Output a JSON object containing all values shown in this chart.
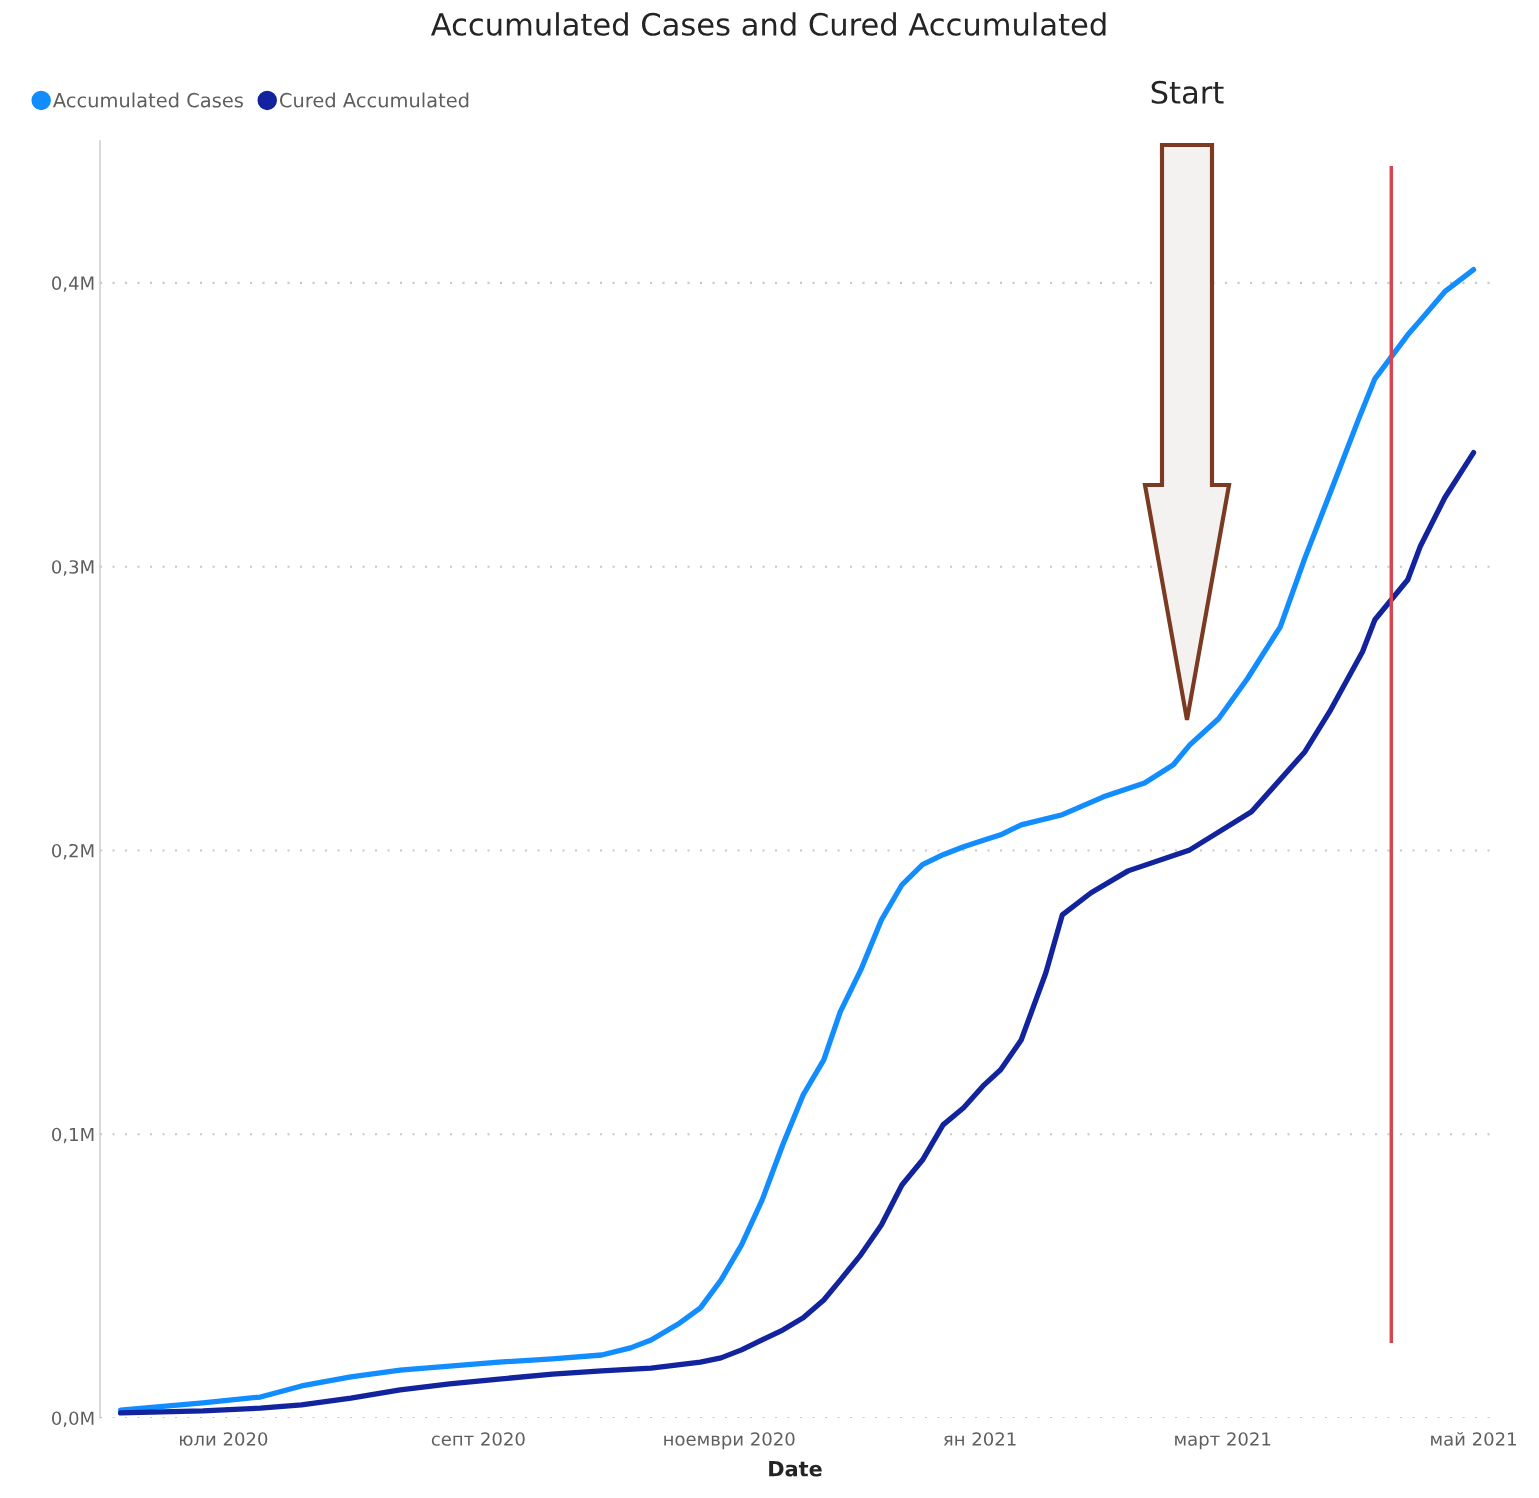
{
  "chart_data": {
    "type": "line",
    "title": "Accumulated Cases and Cured Accumulated",
    "xlabel": "Date",
    "legend": "top left",
    "grid": "y",
    "marker": "none",
    "line_style": "solid",
    "xlim": [
      "2020-06-01",
      "2021-05-05"
    ],
    "xticks": [
      {
        "value": "2020-07-01",
        "label": "юли 2020"
      },
      {
        "value": "2020-09-01",
        "label": "септ 2020"
      },
      {
        "value": "2020-11-01",
        "label": "ноември 2020"
      },
      {
        "value": "2021-01-01",
        "label": "ян 2021"
      },
      {
        "value": "2021-03-01",
        "label": "март 2021"
      },
      {
        "value": "2021-05-01",
        "label": "май 2021"
      }
    ],
    "ylim": [
      0,
      450000
    ],
    "yticks": [
      {
        "value": 0,
        "label": "0,0M"
      },
      {
        "value": 100000,
        "label": "0,1M"
      },
      {
        "value": 200000,
        "label": "0,2M"
      },
      {
        "value": 300000,
        "label": "0,3M"
      },
      {
        "value": 400000,
        "label": "0,4M"
      }
    ],
    "series": [
      {
        "name": "Accumulated Cases",
        "color": "#118dff",
        "x": [
          "2020-06-06",
          "2020-06-26",
          "2020-07-10",
          "2020-07-20",
          "2020-08-01",
          "2020-08-13",
          "2020-08-25",
          "2020-09-06",
          "2020-09-19",
          "2020-10-01",
          "2020-10-08",
          "2020-10-13",
          "2020-10-20",
          "2020-10-25",
          "2020-10-30",
          "2020-11-04",
          "2020-11-09",
          "2020-11-14",
          "2020-11-19",
          "2020-11-24",
          "2020-11-28",
          "2020-12-03",
          "2020-12-08",
          "2020-12-13",
          "2020-12-18",
          "2020-12-23",
          "2020-12-28",
          "2021-01-02",
          "2021-01-06",
          "2021-01-11",
          "2021-01-21",
          "2021-01-31",
          "2021-02-10",
          "2021-02-17",
          "2021-02-21",
          "2021-02-28",
          "2021-03-07",
          "2021-03-15",
          "2021-03-21",
          "2021-03-28",
          "2021-04-03",
          "2021-04-07",
          "2021-04-15",
          "2021-04-18",
          "2021-04-24",
          "2021-05-01"
        ],
        "values": [
          2800,
          5300,
          7400,
          11300,
          14500,
          16900,
          18300,
          19700,
          20800,
          22200,
          24700,
          27500,
          33500,
          38800,
          48600,
          61000,
          76800,
          96200,
          113900,
          126200,
          143100,
          157900,
          175500,
          187900,
          195000,
          198500,
          201300,
          203700,
          205500,
          209000,
          212600,
          218900,
          223800,
          230200,
          237200,
          246400,
          260500,
          278800,
          303100,
          329200,
          351800,
          366200,
          381700,
          386700,
          396900,
          404700
        ]
      },
      {
        "name": "Cured Accumulated",
        "color": "#12239e",
        "x": [
          "2020-06-06",
          "2020-06-26",
          "2020-07-10",
          "2020-07-20",
          "2020-08-01",
          "2020-08-13",
          "2020-08-25",
          "2020-09-06",
          "2020-09-19",
          "2020-10-01",
          "2020-10-13",
          "2020-10-25",
          "2020-10-30",
          "2020-11-04",
          "2020-11-09",
          "2020-11-14",
          "2020-11-19",
          "2020-11-24",
          "2020-11-28",
          "2020-12-03",
          "2020-12-08",
          "2020-12-13",
          "2020-12-18",
          "2020-12-23",
          "2020-12-28",
          "2021-01-02",
          "2021-01-06",
          "2021-01-11",
          "2021-01-17",
          "2021-01-21",
          "2021-01-28",
          "2021-02-06",
          "2021-02-21",
          "2021-03-08",
          "2021-03-21",
          "2021-03-27",
          "2021-04-04",
          "2021-04-07",
          "2021-04-15",
          "2021-04-18",
          "2021-04-24",
          "2021-05-01"
        ],
        "values": [
          1800,
          2500,
          3500,
          4600,
          7000,
          9900,
          12000,
          13700,
          15500,
          16600,
          17600,
          19700,
          21200,
          24000,
          27500,
          31000,
          35300,
          41600,
          48600,
          57500,
          68000,
          82100,
          90900,
          103300,
          109300,
          117400,
          122700,
          133200,
          156900,
          177300,
          185100,
          192800,
          200200,
          213600,
          234800,
          248900,
          270000,
          281300,
          295400,
          307000,
          324300,
          340200
        ]
      }
    ],
    "ref_lines": [
      {
        "axis": "x",
        "value": "2021-04-11",
        "color": "#d64550"
      }
    ],
    "annotations": [
      "Start"
    ]
  }
}
